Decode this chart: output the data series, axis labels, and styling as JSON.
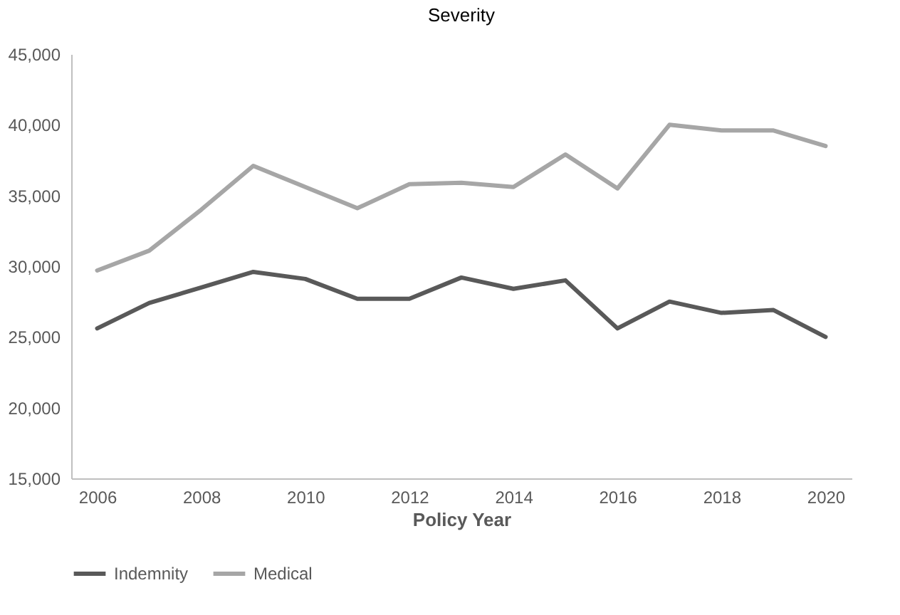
{
  "chart_data": {
    "type": "line",
    "title": "Severity",
    "xlabel": "Policy Year",
    "x": [
      2006,
      2007,
      2008,
      2009,
      2010,
      2011,
      2012,
      2013,
      2014,
      2015,
      2016,
      2017,
      2018,
      2019,
      2020
    ],
    "series": [
      {
        "name": "Indemnity",
        "color": "#595959",
        "values": [
          25600,
          27400,
          28500,
          29600,
          29100,
          27700,
          27700,
          29200,
          28400,
          29000,
          25600,
          27500,
          26700,
          26900,
          25000
        ]
      },
      {
        "name": "Medical",
        "color": "#a6a6a6",
        "values": [
          29700,
          31100,
          34000,
          37100,
          35600,
          34100,
          35800,
          35900,
          35600,
          37900,
          35500,
          40000,
          39600,
          39600,
          38500
        ]
      }
    ],
    "xlim": [
      2005.5,
      2020.5
    ],
    "xticks": [
      2006,
      2008,
      2010,
      2012,
      2014,
      2016,
      2018,
      2020
    ],
    "ylim": [
      15000,
      45000
    ],
    "yticks": [
      {
        "value": 15000,
        "label": "15,000"
      },
      {
        "value": 20000,
        "label": "20,000"
      },
      {
        "value": 25000,
        "label": "25,000"
      },
      {
        "value": 30000,
        "label": "30,000"
      },
      {
        "value": 35000,
        "label": "35,000"
      },
      {
        "value": 40000,
        "label": "40,000"
      },
      {
        "value": 45000,
        "label": "45,000"
      }
    ],
    "grid": false,
    "legend": "bottom",
    "marker": "none",
    "line_style": "solid"
  }
}
